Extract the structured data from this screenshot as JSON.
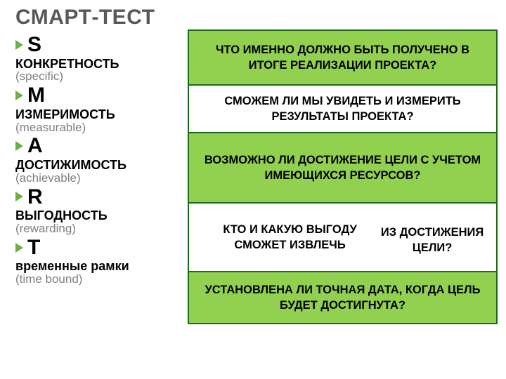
{
  "title": "СМАРТ-ТЕСТ",
  "bullet_color": "#70ad47",
  "table": {
    "border_color": "#1a6b1a",
    "green_bg": "#92d050",
    "white_bg": "#ffffff"
  },
  "smart": [
    {
      "letter": "S",
      "ru": "КОНКРЕТНОСТЬ",
      "en": "(specific)"
    },
    {
      "letter": "M",
      "ru": "ИЗМЕРИМОСТЬ",
      "en": "(measurable)"
    },
    {
      "letter": "A",
      "ru": "ДОСТИЖИМОСТЬ",
      "en": "(achievable)"
    },
    {
      "letter": "R",
      "ru": "ВЫГОДНОСТЬ",
      "en": "(rewarding)"
    },
    {
      "letter": "T",
      "ru": "временные рамки",
      "en": "(time bound)"
    }
  ],
  "questions": [
    {
      "text": "ЧТО ИМЕННО ДОЛЖНО БЫТЬ ПОЛУЧЕНО В ИТОГЕ РЕАЛИЗАЦИИ ПРОЕКТА?",
      "bg": "green",
      "h": 78
    },
    {
      "text": "СМОЖЕМ ЛИ МЫ УВИДЕТЬ И ИЗМЕРИТЬ РЕЗУЛЬТАТЫ ПРОЕКТА?",
      "bg": "white",
      "h": 68
    },
    {
      "text": "ВОЗМОЖНО ЛИ ДОСТИЖЕНИЕ ЦЕЛИ С УЧЕТОМ ИМЕЮЩИХСЯ РЕСУРСОВ?",
      "bg": "green",
      "h": 100
    },
    {
      "text": "КТО И КАКУЮ ВЫГОДУ СМОЖЕТ ИЗВЛЕЧЬ\nИЗ ДОСТИЖЕНИЯ ЦЕЛИ?",
      "bg": "white",
      "h": 98
    },
    {
      "text": "УСТАНОВЛЕНА ЛИ ТОЧНАЯ ДАТА, КОГДА ЦЕЛЬ БУДЕТ ДОСТИГНУТА?",
      "bg": "green",
      "h": 72
    }
  ]
}
